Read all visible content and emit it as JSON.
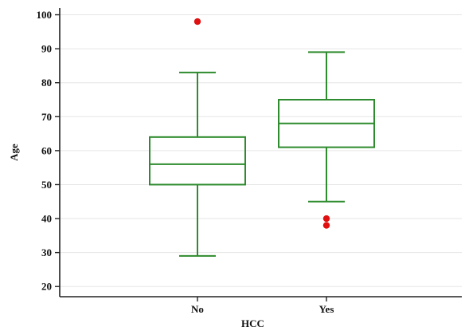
{
  "chart_data": {
    "type": "box",
    "xlabel": "HCC",
    "ylabel": "Age",
    "ylim": [
      17,
      102
    ],
    "yticks": [
      20,
      30,
      40,
      50,
      60,
      70,
      80,
      90,
      100
    ],
    "grid": "horizontal",
    "box_color": "#2e8b2e",
    "outlier_color": "#e01010",
    "categories": [
      "No",
      "Yes"
    ],
    "boxes": [
      {
        "category": "No",
        "whisker_low": 29,
        "q1": 50,
        "median": 56,
        "q3": 64,
        "whisker_high": 83,
        "outliers": [
          98
        ]
      },
      {
        "category": "Yes",
        "whisker_low": 45,
        "q1": 61,
        "median": 68,
        "q3": 75,
        "whisker_high": 89,
        "outliers": [
          40,
          38
        ]
      }
    ]
  }
}
